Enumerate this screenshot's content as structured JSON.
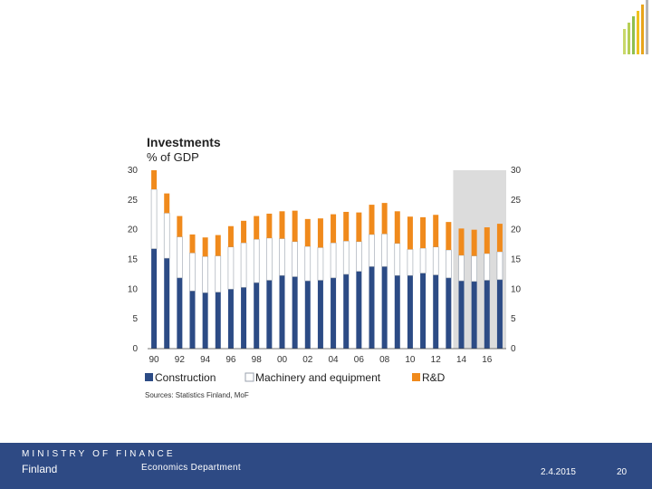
{
  "colors": {
    "construction": "#2c4b85",
    "machinery": "#ffffff",
    "machinery_stroke": "#9aa2ad",
    "rnd": "#f08a1c",
    "forecast_shade": "#dcdcdc",
    "footer_bg": "#2e4a84",
    "logo_bars": [
      "#c9d86a",
      "#b7cf55",
      "#8fbf4d",
      "#f0c21e",
      "#e8a41a",
      "#b5b5b5"
    ]
  },
  "chart_data": {
    "type": "bar",
    "stacked": true,
    "title": "Investments",
    "subtitle": "% of GDP",
    "ylim": [
      0,
      30
    ],
    "yticks": [
      "0",
      "5",
      "10",
      "15",
      "20",
      "25",
      "30"
    ],
    "categories": [
      "90",
      "91",
      "92",
      "93",
      "94",
      "95",
      "96",
      "97",
      "98",
      "99",
      "00",
      "01",
      "02",
      "03",
      "04",
      "05",
      "06",
      "07",
      "08",
      "09",
      "10",
      "11",
      "12",
      "13",
      "14",
      "15",
      "16",
      "17"
    ],
    "x_tick_labels": [
      "90",
      "92",
      "94",
      "96",
      "98",
      "00",
      "02",
      "04",
      "06",
      "08",
      "10",
      "12",
      "14",
      "16"
    ],
    "forecast_start_index": 24,
    "series": [
      {
        "name": "Construction",
        "values": [
          16.8,
          15.2,
          11.9,
          9.7,
          9.4,
          9.5,
          10.0,
          10.3,
          11.1,
          11.5,
          12.3,
          12.1,
          11.4,
          11.5,
          11.9,
          12.5,
          13.0,
          13.8,
          13.8,
          12.3,
          12.3,
          12.7,
          12.4,
          11.9,
          11.4,
          11.3,
          11.5,
          11.6
        ]
      },
      {
        "name": "Machinery and equipment",
        "values": [
          10.0,
          7.6,
          6.9,
          6.4,
          6.1,
          6.1,
          7.1,
          7.5,
          7.3,
          7.1,
          6.2,
          5.9,
          5.8,
          5.5,
          5.9,
          5.6,
          5.0,
          5.4,
          5.5,
          5.4,
          4.4,
          4.2,
          4.7,
          4.7,
          4.3,
          4.3,
          4.5,
          4.7
        ]
      },
      {
        "name": "R&D",
        "values": [
          3.2,
          3.3,
          3.5,
          3.1,
          3.2,
          3.5,
          3.5,
          3.7,
          3.9,
          4.1,
          4.6,
          5.2,
          4.6,
          4.9,
          4.8,
          4.9,
          4.9,
          5.0,
          5.2,
          5.4,
          5.5,
          5.2,
          5.4,
          4.7,
          4.5,
          4.4,
          4.4,
          4.7
        ]
      }
    ],
    "legend": [
      "Construction",
      "Machinery and equipment",
      "R&D"
    ],
    "legend_position": "bottom",
    "source": "Sources: Statistics Finland, MoF",
    "grid": false
  },
  "footer": {
    "ministry": "MINISTRY OF FINANCE",
    "country": "Finland",
    "department": "Economics Department",
    "date": "2.4.2015",
    "page_number": "20"
  }
}
